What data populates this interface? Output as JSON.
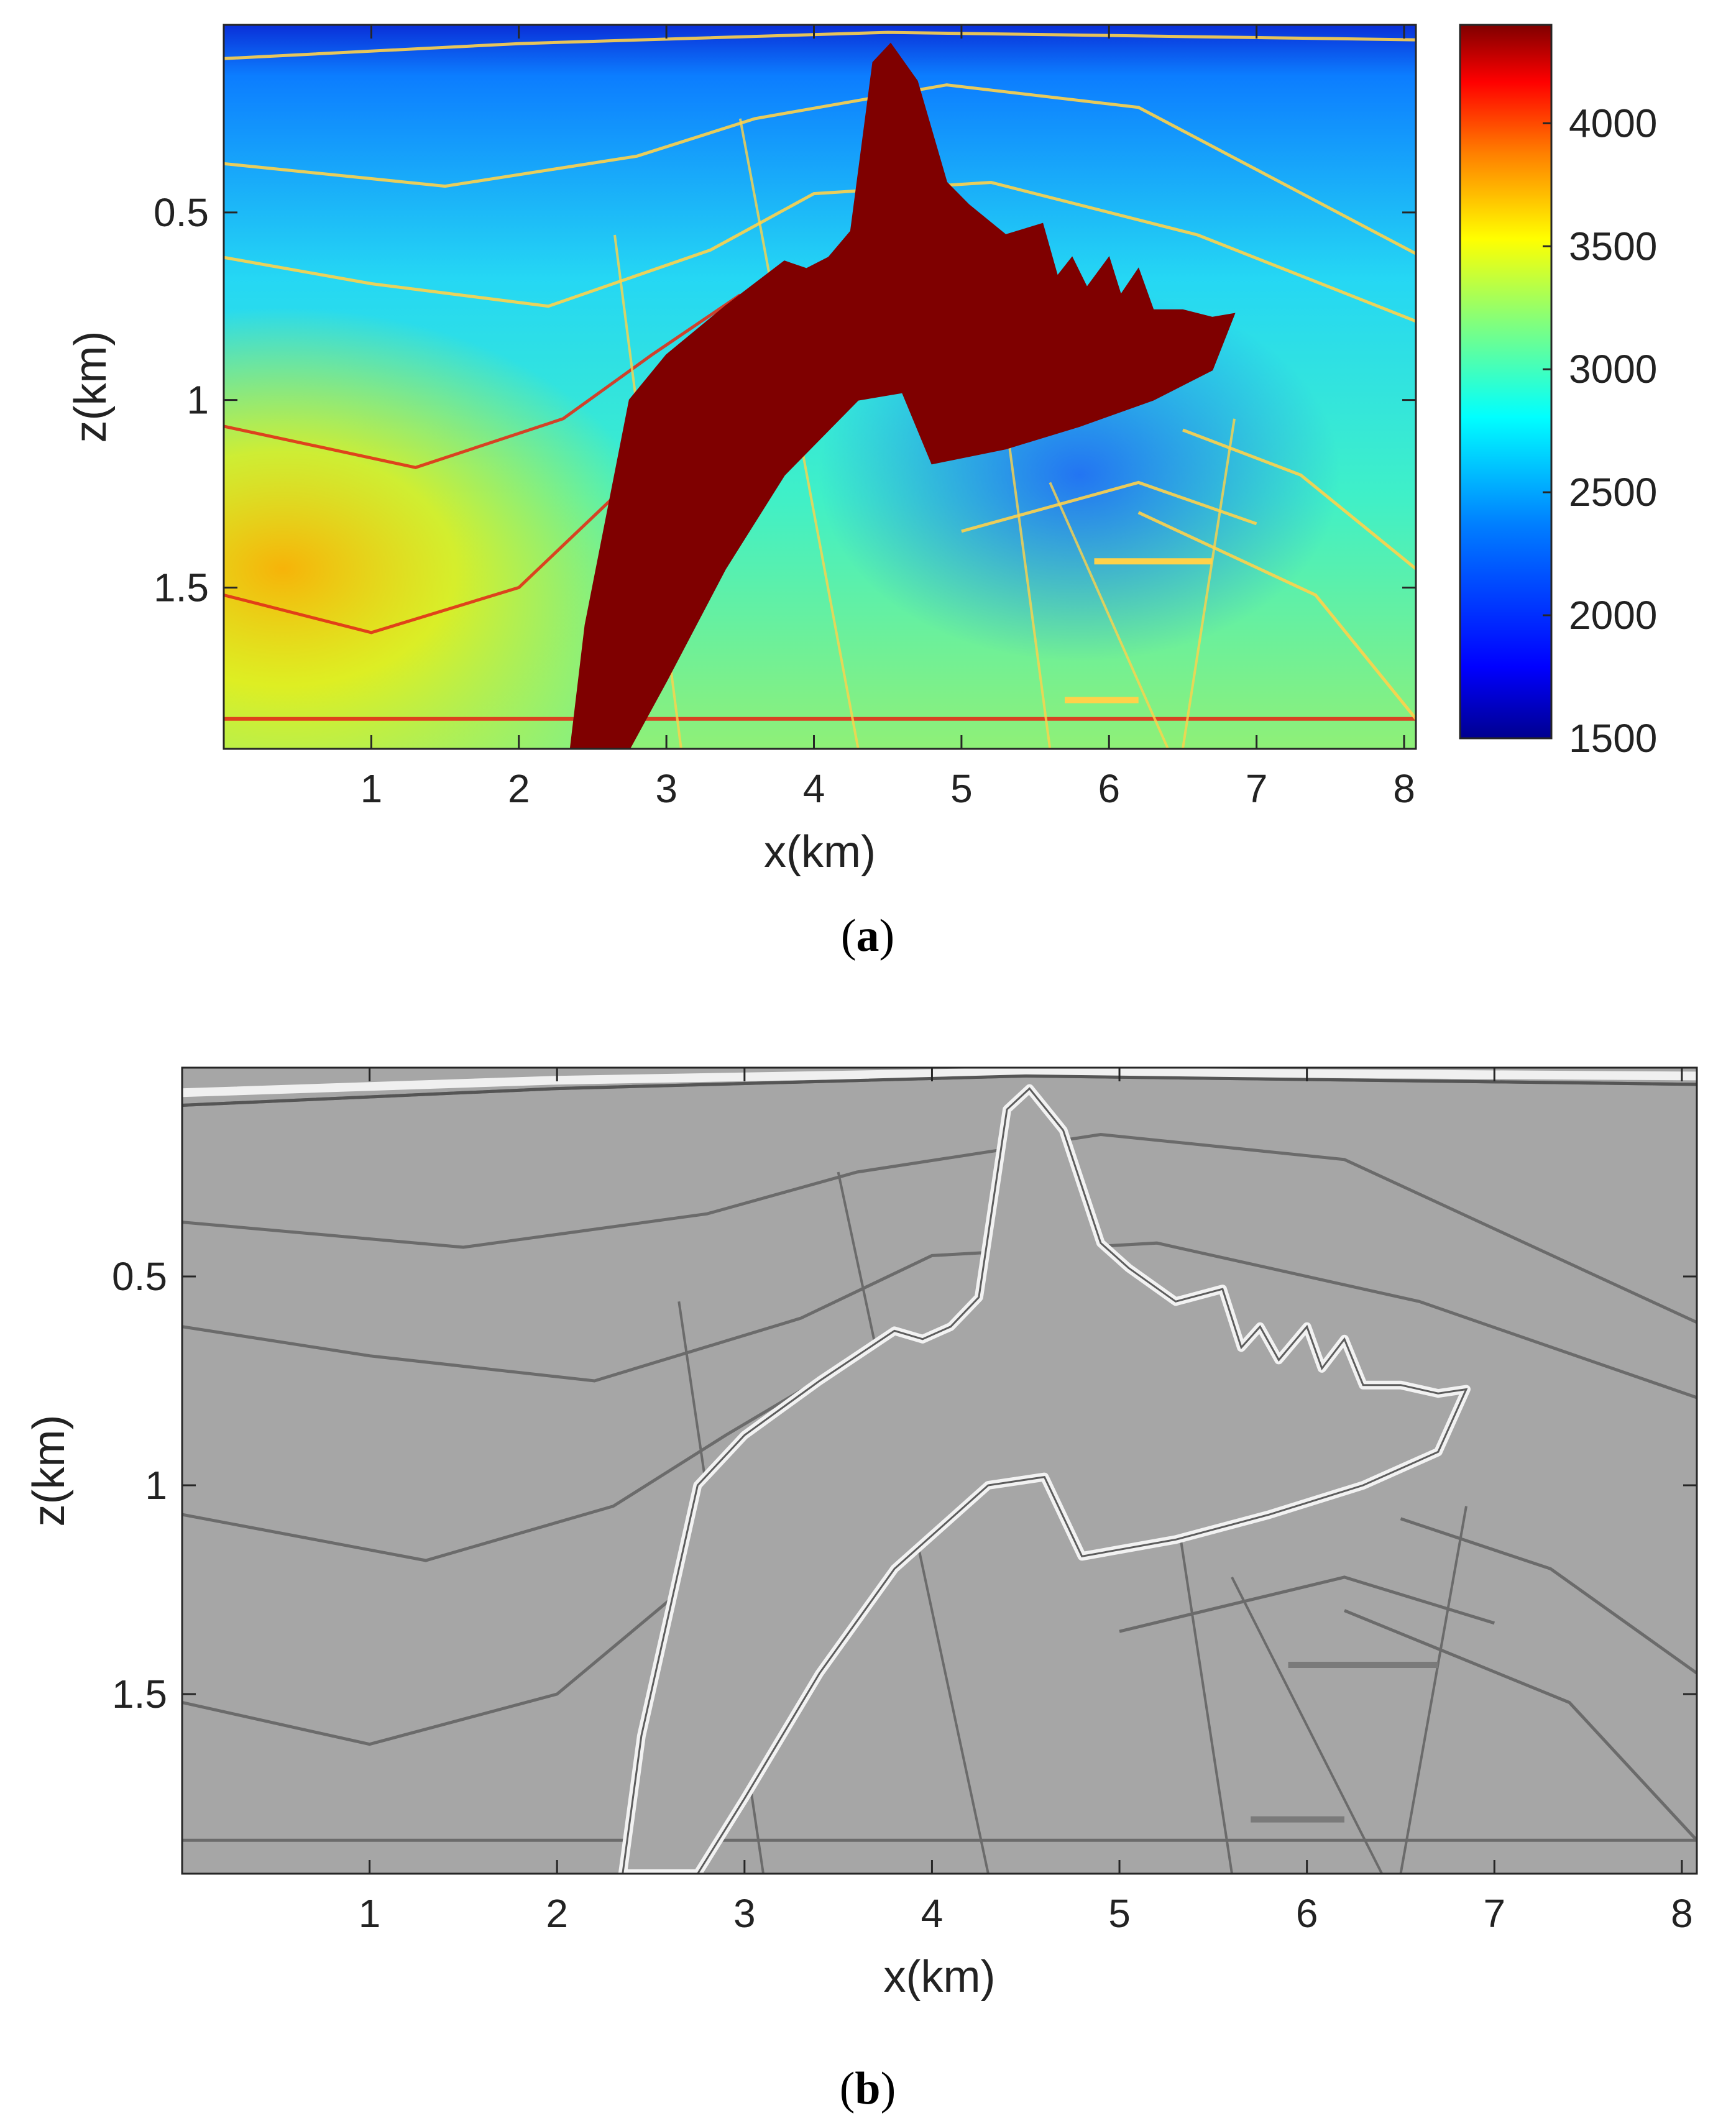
{
  "chart_data": [
    {
      "panel": "(a)",
      "panel_label": {
        "open": "(",
        "letter": "a",
        "close": ")"
      },
      "type": "heatmap",
      "title": "",
      "xlabel": "x(km)",
      "ylabel": "z(km)",
      "xlim": [
        0,
        8.08
      ],
      "ylim": [
        0,
        1.93
      ],
      "y_reversed": true,
      "x_ticks": [
        1,
        2,
        3,
        4,
        5,
        6,
        7,
        8
      ],
      "x_tick_labels": [
        "1",
        "2",
        "3",
        "4",
        "5",
        "6",
        "7",
        "8"
      ],
      "y_ticks": [
        0.5,
        1,
        1.5
      ],
      "y_tick_labels": [
        "0.5",
        "1",
        "1.5"
      ],
      "colormap": "jet",
      "colorbar": {
        "limits": [
          1500,
          4400
        ],
        "ticks": [
          1500,
          2000,
          2500,
          3000,
          3500,
          4000
        ],
        "tick_labels": [
          "1500",
          "2000",
          "2500",
          "3000",
          "3500",
          "4000"
        ],
        "placement": "right"
      },
      "salt_color": "#7f0000",
      "reflectors_xz": [
        [
          [
            0,
            0.09
          ],
          [
            2.0,
            0.05
          ],
          [
            4.5,
            0.02
          ],
          [
            8.08,
            0.04
          ]
        ],
        [
          [
            0,
            0.37
          ],
          [
            1.5,
            0.43
          ],
          [
            2.8,
            0.35
          ],
          [
            3.6,
            0.25
          ],
          [
            4.9,
            0.16
          ],
          [
            6.2,
            0.22
          ],
          [
            8.08,
            0.61
          ]
        ],
        [
          [
            0,
            0.62
          ],
          [
            1.0,
            0.69
          ],
          [
            2.2,
            0.75
          ],
          [
            3.3,
            0.6
          ],
          [
            4.0,
            0.45
          ],
          [
            5.2,
            0.42
          ],
          [
            6.6,
            0.56
          ],
          [
            8.08,
            0.79
          ]
        ],
        [
          [
            0,
            1.07
          ],
          [
            1.3,
            1.18
          ],
          [
            2.3,
            1.05
          ],
          [
            2.9,
            0.88
          ],
          [
            3.5,
            0.72
          ]
        ],
        [
          [
            0,
            1.52
          ],
          [
            1.0,
            1.62
          ],
          [
            2.0,
            1.5
          ],
          [
            2.8,
            1.2
          ]
        ],
        [
          [
            0,
            1.85
          ],
          [
            8.08,
            1.85
          ]
        ],
        [
          [
            6.2,
            1.3
          ],
          [
            7.4,
            1.52
          ],
          [
            8.08,
            1.85
          ]
        ],
        [
          [
            5.0,
            1.35
          ],
          [
            6.2,
            1.22
          ],
          [
            7.0,
            1.33
          ]
        ],
        [
          [
            6.5,
            1.08
          ],
          [
            7.3,
            1.2
          ],
          [
            8.08,
            1.45
          ]
        ]
      ],
      "faults_xz": [
        [
          [
            3.5,
            0.25
          ],
          [
            4.3,
            1.93
          ]
        ],
        [
          [
            2.65,
            0.56
          ],
          [
            3.1,
            1.93
          ]
        ],
        [
          [
            5.6,
            1.22
          ],
          [
            6.4,
            1.93
          ]
        ],
        [
          [
            5.3,
            1.05
          ],
          [
            5.6,
            1.93
          ]
        ],
        [
          [
            6.85,
            1.05
          ],
          [
            6.5,
            1.93
          ]
        ]
      ],
      "short_bars_xz": [
        [
          [
            5.9,
            1.43
          ],
          [
            6.7,
            1.43
          ]
        ],
        [
          [
            5.7,
            1.8
          ],
          [
            6.2,
            1.8
          ]
        ]
      ],
      "salt_outline_xz": [
        [
          2.35,
          1.93
        ],
        [
          2.45,
          1.6
        ],
        [
          2.6,
          1.3
        ],
        [
          2.75,
          1.0
        ],
        [
          3.0,
          0.88
        ],
        [
          3.4,
          0.75
        ],
        [
          3.8,
          0.63
        ],
        [
          3.95,
          0.65
        ],
        [
          4.1,
          0.62
        ],
        [
          4.25,
          0.55
        ],
        [
          4.4,
          0.1
        ],
        [
          4.52,
          0.05
        ],
        [
          4.7,
          0.15
        ],
        [
          4.9,
          0.42
        ],
        [
          5.05,
          0.48
        ],
        [
          5.3,
          0.56
        ],
        [
          5.55,
          0.53
        ],
        [
          5.65,
          0.67
        ],
        [
          5.75,
          0.62
        ],
        [
          5.85,
          0.7
        ],
        [
          6.0,
          0.62
        ],
        [
          6.08,
          0.72
        ],
        [
          6.2,
          0.65
        ],
        [
          6.3,
          0.76
        ],
        [
          6.5,
          0.76
        ],
        [
          6.7,
          0.78
        ],
        [
          6.85,
          0.77
        ],
        [
          6.7,
          0.92
        ],
        [
          6.3,
          1.0
        ],
        [
          5.8,
          1.07
        ],
        [
          5.3,
          1.13
        ],
        [
          4.8,
          1.17
        ],
        [
          4.6,
          0.98
        ],
        [
          4.3,
          1.0
        ],
        [
          3.8,
          1.2
        ],
        [
          3.4,
          1.45
        ],
        [
          3.0,
          1.75
        ],
        [
          2.75,
          1.93
        ]
      ]
    },
    {
      "panel": "(b)",
      "panel_label": {
        "open": "(",
        "letter": "b",
        "close": ")"
      },
      "type": "heatmap",
      "title": "",
      "xlabel": "x(km)",
      "ylabel": "z(km)",
      "xlim": [
        0,
        8.08
      ],
      "ylim": [
        0,
        1.93
      ],
      "y_reversed": true,
      "x_ticks": [
        1,
        2,
        3,
        4,
        5,
        6,
        7,
        8
      ],
      "x_tick_labels": [
        "1",
        "2",
        "3",
        "4",
        "5",
        "6",
        "7",
        "8"
      ],
      "y_ticks": [
        0.5,
        1,
        1.5
      ],
      "y_tick_labels": [
        "0.5",
        "1",
        "1.5"
      ],
      "colormap": "gray",
      "background_color": "#a6a6a6"
    }
  ],
  "colors": {
    "jet_stops": [
      "#00008f",
      "#0000ff",
      "#007fff",
      "#00ffff",
      "#7fff7f",
      "#ffff00",
      "#ff7f00",
      "#ff0000",
      "#7f0000"
    ],
    "axis": "#262626",
    "reflector_a": "#ffd24a",
    "reflector_b": "#6b6b6b",
    "highlight_b": "#f2f2f2"
  }
}
